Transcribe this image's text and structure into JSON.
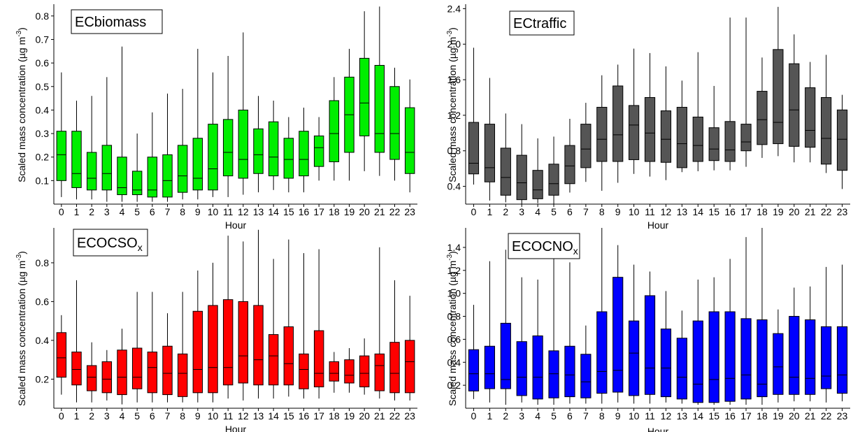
{
  "shared": {
    "hours": [
      "0",
      "1",
      "2",
      "3",
      "4",
      "5",
      "6",
      "7",
      "8",
      "9",
      "10",
      "11",
      "12",
      "13",
      "14",
      "15",
      "16",
      "17",
      "18",
      "19",
      "20",
      "21",
      "22",
      "23"
    ],
    "xlabel": "Hour",
    "ylabel_main": "Scaled mass concentration (µg m",
    "ylabel_sup": "-3",
    "ylabel_close": ")"
  },
  "chart_data": [
    {
      "type": "box",
      "title": "ECbiomass",
      "title_sub": "",
      "color": "#00ee00",
      "ylim": [
        0,
        0.85
      ],
      "yticks": [
        0.1,
        0.2,
        0.3,
        0.4,
        0.5,
        0.6,
        0.7,
        0.8
      ],
      "ytick_labels": [
        "0.1",
        "0.2",
        "0.3",
        "0.4",
        "0.5",
        "0.6",
        "0.7",
        "0.8"
      ],
      "boxes": [
        {
          "min": 0.03,
          "q1": 0.1,
          "median": 0.21,
          "q3": 0.31,
          "max": 0.56
        },
        {
          "min": 0.02,
          "q1": 0.07,
          "median": 0.13,
          "q3": 0.31,
          "max": 0.44
        },
        {
          "min": 0.02,
          "q1": 0.06,
          "median": 0.11,
          "q3": 0.22,
          "max": 0.46
        },
        {
          "min": 0.01,
          "q1": 0.06,
          "median": 0.13,
          "q3": 0.25,
          "max": 0.54
        },
        {
          "min": 0.01,
          "q1": 0.04,
          "median": 0.07,
          "q3": 0.2,
          "max": 0.67
        },
        {
          "min": 0.01,
          "q1": 0.04,
          "median": 0.06,
          "q3": 0.14,
          "max": 0.3
        },
        {
          "min": 0.01,
          "q1": 0.03,
          "median": 0.06,
          "q3": 0.2,
          "max": 0.39
        },
        {
          "min": 0.01,
          "q1": 0.03,
          "median": 0.1,
          "q3": 0.21,
          "max": 0.47
        },
        {
          "min": 0.02,
          "q1": 0.05,
          "median": 0.12,
          "q3": 0.25,
          "max": 0.49
        },
        {
          "min": 0.02,
          "q1": 0.06,
          "median": 0.11,
          "q3": 0.28,
          "max": 0.66
        },
        {
          "min": 0.03,
          "q1": 0.06,
          "median": 0.15,
          "q3": 0.34,
          "max": 0.56
        },
        {
          "min": 0.03,
          "q1": 0.12,
          "median": 0.22,
          "q3": 0.36,
          "max": 0.63
        },
        {
          "min": 0.04,
          "q1": 0.11,
          "median": 0.19,
          "q3": 0.4,
          "max": 0.73
        },
        {
          "min": 0.05,
          "q1": 0.13,
          "median": 0.21,
          "q3": 0.32,
          "max": 0.46
        },
        {
          "min": 0.06,
          "q1": 0.12,
          "median": 0.2,
          "q3": 0.35,
          "max": 0.44
        },
        {
          "min": 0.05,
          "q1": 0.11,
          "median": 0.19,
          "q3": 0.28,
          "max": 0.37
        },
        {
          "min": 0.05,
          "q1": 0.12,
          "median": 0.19,
          "q3": 0.31,
          "max": 0.41
        },
        {
          "min": 0.1,
          "q1": 0.16,
          "median": 0.24,
          "q3": 0.29,
          "max": 0.37
        },
        {
          "min": 0.1,
          "q1": 0.18,
          "median": 0.3,
          "q3": 0.44,
          "max": 0.54
        },
        {
          "min": 0.1,
          "q1": 0.22,
          "median": 0.38,
          "q3": 0.54,
          "max": 0.66
        },
        {
          "min": 0.14,
          "q1": 0.29,
          "median": 0.43,
          "q3": 0.62,
          "max": 0.82
        },
        {
          "min": 0.12,
          "q1": 0.22,
          "median": 0.3,
          "q3": 0.59,
          "max": 0.84
        },
        {
          "min": 0.1,
          "q1": 0.19,
          "median": 0.3,
          "q3": 0.5,
          "max": 0.58
        },
        {
          "min": 0.05,
          "q1": 0.13,
          "median": 0.22,
          "q3": 0.41,
          "max": 0.53
        }
      ]
    },
    {
      "type": "box",
      "title": "ECtraffic",
      "title_sub": "",
      "color": "#555555",
      "ylim": [
        0.2,
        2.45
      ],
      "yticks": [
        0.4,
        0.8,
        1.2,
        1.6,
        2.0,
        2.4
      ],
      "ytick_labels": [
        "0.4",
        "0.8",
        "1.2",
        "1.6",
        "2.0",
        "2.4"
      ],
      "boxes": [
        {
          "min": 0.42,
          "q1": 0.54,
          "median": 0.66,
          "q3": 1.12,
          "max": 1.96
        },
        {
          "min": 0.24,
          "q1": 0.45,
          "median": 0.61,
          "q3": 1.1,
          "max": 1.62
        },
        {
          "min": 0.22,
          "q1": 0.3,
          "median": 0.5,
          "q3": 0.83,
          "max": 1.22
        },
        {
          "min": 0.2,
          "q1": 0.25,
          "median": 0.44,
          "q3": 0.75,
          "max": 1.1
        },
        {
          "min": 0.21,
          "q1": 0.26,
          "median": 0.36,
          "q3": 0.58,
          "max": 0.94
        },
        {
          "min": 0.2,
          "q1": 0.3,
          "median": 0.43,
          "q3": 0.65,
          "max": 0.96
        },
        {
          "min": 0.33,
          "q1": 0.43,
          "median": 0.63,
          "q3": 0.86,
          "max": 1.16
        },
        {
          "min": 0.45,
          "q1": 0.61,
          "median": 0.82,
          "q3": 1.1,
          "max": 1.34
        },
        {
          "min": 0.35,
          "q1": 0.68,
          "median": 0.93,
          "q3": 1.29,
          "max": 1.65
        },
        {
          "min": 0.44,
          "q1": 0.68,
          "median": 0.98,
          "q3": 1.53,
          "max": 1.77
        },
        {
          "min": 0.54,
          "q1": 0.7,
          "median": 1.09,
          "q3": 1.31,
          "max": 1.95
        },
        {
          "min": 0.51,
          "q1": 0.68,
          "median": 1.0,
          "q3": 1.4,
          "max": 1.9
        },
        {
          "min": 0.47,
          "q1": 0.67,
          "median": 0.93,
          "q3": 1.25,
          "max": 1.75
        },
        {
          "min": 0.56,
          "q1": 0.61,
          "median": 0.88,
          "q3": 1.29,
          "max": 1.59
        },
        {
          "min": 0.57,
          "q1": 0.68,
          "median": 0.86,
          "q3": 1.18,
          "max": 1.91
        },
        {
          "min": 0.58,
          "q1": 0.69,
          "median": 0.82,
          "q3": 1.06,
          "max": 1.53
        },
        {
          "min": 0.58,
          "q1": 0.68,
          "median": 0.81,
          "q3": 1.13,
          "max": 2.3
        },
        {
          "min": 0.62,
          "q1": 0.8,
          "median": 0.9,
          "q3": 1.1,
          "max": 2.3
        },
        {
          "min": 0.72,
          "q1": 0.87,
          "median": 1.15,
          "q3": 1.47,
          "max": 1.85
        },
        {
          "min": 0.74,
          "q1": 0.88,
          "median": 1.12,
          "q3": 1.94,
          "max": 2.42
        },
        {
          "min": 0.67,
          "q1": 0.85,
          "median": 1.26,
          "q3": 1.78,
          "max": 2.11
        },
        {
          "min": 0.67,
          "q1": 0.84,
          "median": 1.03,
          "q3": 1.51,
          "max": 1.8
        },
        {
          "min": 0.55,
          "q1": 0.65,
          "median": 0.94,
          "q3": 1.4,
          "max": 1.88
        },
        {
          "min": 0.37,
          "q1": 0.58,
          "median": 0.93,
          "q3": 1.26,
          "max": 1.43
        }
      ]
    },
    {
      "type": "box",
      "title": "ECOCSO",
      "title_sub": "x",
      "color": "#ff0000",
      "ylim": [
        0.05,
        0.98
      ],
      "yticks": [
        0.2,
        0.4,
        0.6,
        0.8
      ],
      "ytick_labels": [
        "0.2",
        "0.4",
        "0.6",
        "0.8"
      ],
      "boxes": [
        {
          "min": 0.12,
          "q1": 0.21,
          "median": 0.31,
          "q3": 0.44,
          "max": 0.53
        },
        {
          "min": 0.08,
          "q1": 0.17,
          "median": 0.25,
          "q3": 0.34,
          "max": 0.71
        },
        {
          "min": 0.08,
          "q1": 0.14,
          "median": 0.21,
          "q3": 0.27,
          "max": 0.39
        },
        {
          "min": 0.09,
          "q1": 0.13,
          "median": 0.2,
          "q3": 0.29,
          "max": 0.35
        },
        {
          "min": 0.07,
          "q1": 0.12,
          "median": 0.21,
          "q3": 0.35,
          "max": 0.46
        },
        {
          "min": 0.08,
          "q1": 0.15,
          "median": 0.21,
          "q3": 0.36,
          "max": 0.65
        },
        {
          "min": 0.08,
          "q1": 0.13,
          "median": 0.26,
          "q3": 0.34,
          "max": 0.65
        },
        {
          "min": 0.08,
          "q1": 0.12,
          "median": 0.23,
          "q3": 0.37,
          "max": 0.54
        },
        {
          "min": 0.08,
          "q1": 0.11,
          "median": 0.23,
          "q3": 0.33,
          "max": 0.65
        },
        {
          "min": 0.08,
          "q1": 0.13,
          "median": 0.25,
          "q3": 0.55,
          "max": 0.76
        },
        {
          "min": 0.08,
          "q1": 0.13,
          "median": 0.26,
          "q3": 0.58,
          "max": 0.8
        },
        {
          "min": 0.1,
          "q1": 0.17,
          "median": 0.26,
          "q3": 0.61,
          "max": 0.94
        },
        {
          "min": 0.09,
          "q1": 0.18,
          "median": 0.32,
          "q3": 0.6,
          "max": 0.91
        },
        {
          "min": 0.1,
          "q1": 0.17,
          "median": 0.3,
          "q3": 0.58,
          "max": 0.97
        },
        {
          "min": 0.1,
          "q1": 0.17,
          "median": 0.32,
          "q3": 0.43,
          "max": 0.82
        },
        {
          "min": 0.11,
          "q1": 0.17,
          "median": 0.28,
          "q3": 0.47,
          "max": 0.92
        },
        {
          "min": 0.1,
          "q1": 0.15,
          "median": 0.25,
          "q3": 0.33,
          "max": 0.85
        },
        {
          "min": 0.1,
          "q1": 0.16,
          "median": 0.23,
          "q3": 0.45,
          "max": 0.87
        },
        {
          "min": 0.13,
          "q1": 0.19,
          "median": 0.23,
          "q3": 0.29,
          "max": 0.34
        },
        {
          "min": 0.13,
          "q1": 0.18,
          "median": 0.22,
          "q3": 0.3,
          "max": 0.36
        },
        {
          "min": 0.12,
          "q1": 0.16,
          "median": 0.23,
          "q3": 0.32,
          "max": 0.41
        },
        {
          "min": 0.1,
          "q1": 0.14,
          "median": 0.27,
          "q3": 0.33,
          "max": 0.88
        },
        {
          "min": 0.09,
          "q1": 0.13,
          "median": 0.23,
          "q3": 0.39,
          "max": 0.71
        },
        {
          "min": 0.09,
          "q1": 0.13,
          "median": 0.29,
          "q3": 0.4,
          "max": 0.63
        }
      ]
    },
    {
      "type": "box",
      "title": "ECOCNO",
      "title_sub": "x",
      "color": "#0000ff",
      "ylim": [
        0.0,
        1.57
      ],
      "yticks": [
        0.2,
        0.4,
        0.6,
        0.8,
        1.0,
        1.2,
        1.4
      ],
      "ytick_labels": [
        "0.2",
        "0.4",
        "0.6",
        "0.8",
        "1.0",
        "1.2",
        "1.4"
      ],
      "boxes": [
        {
          "min": 0.08,
          "q1": 0.15,
          "median": 0.3,
          "q3": 0.51,
          "max": 0.9
        },
        {
          "min": 0.05,
          "q1": 0.17,
          "median": 0.3,
          "q3": 0.54,
          "max": 1.28
        },
        {
          "min": 0.03,
          "q1": 0.17,
          "median": 0.25,
          "q3": 0.74,
          "max": 1.38
        },
        {
          "min": 0.05,
          "q1": 0.11,
          "median": 0.27,
          "q3": 0.58,
          "max": 1.14
        },
        {
          "min": 0.03,
          "q1": 0.08,
          "median": 0.27,
          "q3": 0.63,
          "max": 1.12
        },
        {
          "min": 0.03,
          "q1": 0.09,
          "median": 0.3,
          "q3": 0.5,
          "max": 1.33
        },
        {
          "min": 0.04,
          "q1": 0.1,
          "median": 0.29,
          "q3": 0.54,
          "max": 1.27
        },
        {
          "min": 0.04,
          "q1": 0.09,
          "median": 0.23,
          "q3": 0.47,
          "max": 0.72
        },
        {
          "min": 0.04,
          "q1": 0.13,
          "median": 0.32,
          "q3": 0.84,
          "max": 1.57
        },
        {
          "min": 0.05,
          "q1": 0.14,
          "median": 0.33,
          "q3": 1.14,
          "max": 1.42
        },
        {
          "min": 0.04,
          "q1": 0.11,
          "median": 0.48,
          "q3": 0.76,
          "max": 1.25
        },
        {
          "min": 0.04,
          "q1": 0.12,
          "median": 0.35,
          "q3": 0.98,
          "max": 1.19
        },
        {
          "min": 0.05,
          "q1": 0.1,
          "median": 0.35,
          "q3": 0.69,
          "max": 1.02
        },
        {
          "min": 0.04,
          "q1": 0.08,
          "median": 0.27,
          "q3": 0.61,
          "max": 0.85
        },
        {
          "min": 0.03,
          "q1": 0.05,
          "median": 0.21,
          "q3": 0.76,
          "max": 1.12
        },
        {
          "min": 0.03,
          "q1": 0.05,
          "median": 0.25,
          "q3": 0.84,
          "max": 1.14
        },
        {
          "min": 0.03,
          "q1": 0.06,
          "median": 0.26,
          "q3": 0.84,
          "max": 1.3
        },
        {
          "min": 0.03,
          "q1": 0.08,
          "median": 0.29,
          "q3": 0.78,
          "max": 1.49
        },
        {
          "min": 0.03,
          "q1": 0.1,
          "median": 0.21,
          "q3": 0.77,
          "max": 1.57
        },
        {
          "min": 0.05,
          "q1": 0.12,
          "median": 0.36,
          "q3": 0.65,
          "max": 0.86
        },
        {
          "min": 0.06,
          "q1": 0.12,
          "median": 0.27,
          "q3": 0.8,
          "max": 1.05
        },
        {
          "min": 0.06,
          "q1": 0.12,
          "median": 0.26,
          "q3": 0.77,
          "max": 1.06
        },
        {
          "min": 0.05,
          "q1": 0.17,
          "median": 0.28,
          "q3": 0.71,
          "max": 1.23
        },
        {
          "min": 0.06,
          "q1": 0.13,
          "median": 0.29,
          "q3": 0.71,
          "max": 1.25
        }
      ]
    }
  ]
}
